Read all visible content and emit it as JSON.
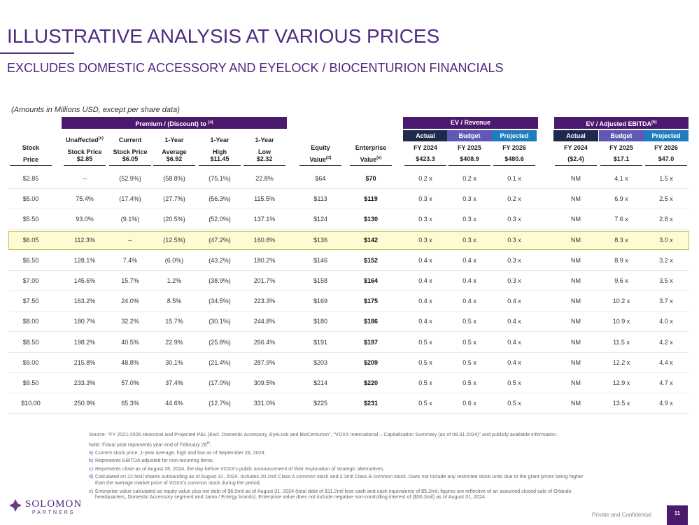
{
  "header": {
    "title": "ILLUSTRATIVE ANALYSIS AT VARIOUS PRICES",
    "subtitle": "EXCLUDES DOMESTIC ACCESSORY AND EYELOCK / BIOCENTURION FINANCIALS"
  },
  "units_note": "(Amounts in Millions USD, except per share data)",
  "table": {
    "premium_header": {
      "label": "Premium / (Discount) to",
      "note": "(a)"
    },
    "ev_revenue_header": "EV / Revenue",
    "ev_ebitda_header": {
      "label": "EV / Adjusted EBITDA",
      "note": "(b)"
    },
    "periods": [
      "Actual",
      "Budget",
      "Projected",
      "Actual",
      "Budget",
      "Projected"
    ],
    "column_headers": [
      {
        "lines": [
          "Stock",
          "Price"
        ]
      },
      {
        "lines": [
          "Unaffected",
          "Stock Price"
        ],
        "note": "(c)"
      },
      {
        "lines": [
          "Current",
          "Stock Price"
        ]
      },
      {
        "lines": [
          "1-Year",
          "Average"
        ]
      },
      {
        "lines": [
          "1-Year",
          "High"
        ]
      },
      {
        "lines": [
          "1-Year",
          "Low"
        ]
      },
      {
        "lines": [
          "Equity",
          "Value"
        ],
        "note": "(d)"
      },
      {
        "lines": [
          "Enterprise",
          "Value"
        ],
        "note": "(e)"
      },
      {
        "lines": [
          "FY 2024"
        ]
      },
      {
        "lines": [
          "FY 2025"
        ]
      },
      {
        "lines": [
          "FY 2026"
        ]
      },
      {
        "lines": [
          "FY 2024"
        ]
      },
      {
        "lines": [
          "FY 2025"
        ]
      },
      {
        "lines": [
          "FY 2026"
        ]
      }
    ],
    "premium_reference": [
      "$2.85",
      "$6.05",
      "$6.92",
      "$11.45",
      "$2.32"
    ],
    "ev_reference": [
      "$423.3",
      "$408.9",
      "$480.6",
      "($2.4)",
      "$17.1",
      "$47.0"
    ],
    "highlighted_row": 3,
    "rows": [
      [
        "$2.85",
        "--",
        "(52.9%)",
        "(58.8%)",
        "(75.1%)",
        "22.8%",
        "$64",
        "$70",
        "0.2 x",
        "0.2 x",
        "0.1 x",
        "NM",
        "4.1 x",
        "1.5 x"
      ],
      [
        "$5.00",
        "75.4%",
        "(17.4%)",
        "(27.7%)",
        "(56.3%)",
        "115.5%",
        "$113",
        "$119",
        "0.3 x",
        "0.3 x",
        "0.2 x",
        "NM",
        "6.9 x",
        "2.5 x"
      ],
      [
        "$5.50",
        "93.0%",
        "(9.1%)",
        "(20.5%)",
        "(52.0%)",
        "137.1%",
        "$124",
        "$130",
        "0.3 x",
        "0.3 x",
        "0.3 x",
        "NM",
        "7.6 x",
        "2.8 x"
      ],
      [
        "$6.05",
        "112.3%",
        "--",
        "(12.5%)",
        "(47.2%)",
        "160.8%",
        "$136",
        "$142",
        "0.3 x",
        "0.3 x",
        "0.3 x",
        "NM",
        "8.3 x",
        "3.0 x"
      ],
      [
        "$6.50",
        "128.1%",
        "7.4%",
        "(6.0%)",
        "(43.2%)",
        "180.2%",
        "$146",
        "$152",
        "0.4 x",
        "0.4 x",
        "0.3 x",
        "NM",
        "8.9 x",
        "3.2 x"
      ],
      [
        "$7.00",
        "145.6%",
        "15.7%",
        "1.2%",
        "(38.9%)",
        "201.7%",
        "$158",
        "$164",
        "0.4 x",
        "0.4 x",
        "0.3 x",
        "NM",
        "9.6 x",
        "3.5 x"
      ],
      [
        "$7.50",
        "163.2%",
        "24.0%",
        "8.5%",
        "(34.5%)",
        "223.3%",
        "$169",
        "$175",
        "0.4 x",
        "0.4 x",
        "0.4 x",
        "NM",
        "10.2 x",
        "3.7 x"
      ],
      [
        "$8.00",
        "180.7%",
        "32.2%",
        "15.7%",
        "(30.1%)",
        "244.8%",
        "$180",
        "$186",
        "0.4 x",
        "0.5 x",
        "0.4 x",
        "NM",
        "10.9 x",
        "4.0 x"
      ],
      [
        "$8.50",
        "198.2%",
        "40.5%",
        "22.9%",
        "(25.8%)",
        "266.4%",
        "$191",
        "$197",
        "0.5 x",
        "0.5 x",
        "0.4 x",
        "NM",
        "11.5 x",
        "4.2 x"
      ],
      [
        "$9.00",
        "215.8%",
        "48.8%",
        "30.1%",
        "(21.4%)",
        "287.9%",
        "$203",
        "$209",
        "0.5 x",
        "0.5 x",
        "0.4 x",
        "NM",
        "12.2 x",
        "4.4 x"
      ],
      [
        "$9.50",
        "233.3%",
        "57.0%",
        "37.4%",
        "(17.0%)",
        "309.5%",
        "$214",
        "$220",
        "0.5 x",
        "0.5 x",
        "0.5 x",
        "NM",
        "12.9 x",
        "4.7 x"
      ],
      [
        "$10.00",
        "250.9%",
        "65.3%",
        "44.6%",
        "(12.7%)",
        "331.0%",
        "$225",
        "$231",
        "0.5 x",
        "0.6 x",
        "0.5 x",
        "NM",
        "13.5 x",
        "4.9 x"
      ]
    ]
  },
  "footnotes": {
    "source": "Source: “FY 2021-2026 Historical and Projected P&L (Excl. Domestic Accessory, EyeLock and BioCenturion”, “VOXX International – Capitalization Summary (as of 08.31.2024)” and publicly available information.",
    "note": {
      "text": "Note: Fiscal year represents year end of February 28",
      "sup": "th",
      "end": "."
    },
    "items": [
      {
        "marker": "a)",
        "text": "Current stock price, 1-year average, high and low as of September 26, 2024."
      },
      {
        "marker": "b)",
        "text": "Represents EBITDA adjusted for non-recurring items."
      },
      {
        "marker": "c)",
        "text": "Represents close as of August 26, 2024, the day before VOXX's public announcement of their exploration of strategic alternatives."
      },
      {
        "marker": "d)",
        "text": "Calculated on 22.5mil shares outstanding as of August 31, 2024. Includes 20.2mil Class A common stock and 2.3mil Class B common stock. Does not include any restricted stock units due to the grant prices being higher than the average market price of VOXX's common stock during the period."
      },
      {
        "marker": "e)",
        "text": "Enterprise value calculated as equity value plus net debt of $6.0mil as of August 31, 2024 (total debt of $11.2mil less cash and cash equivalents of $5.2mil; figures are reflective of an assumed closed sale of Orlando headquarters, Domestic Accessory segment and Jamo / Energy brands). Enterprise value does not include negative non-controlling interest of ($36.3mil) as of August 31, 2024."
      }
    ]
  },
  "footer": {
    "logo_name": "SOLOMON",
    "logo_sub": "PARTNERS",
    "confidential": "Private and Confidential",
    "page": "11"
  }
}
